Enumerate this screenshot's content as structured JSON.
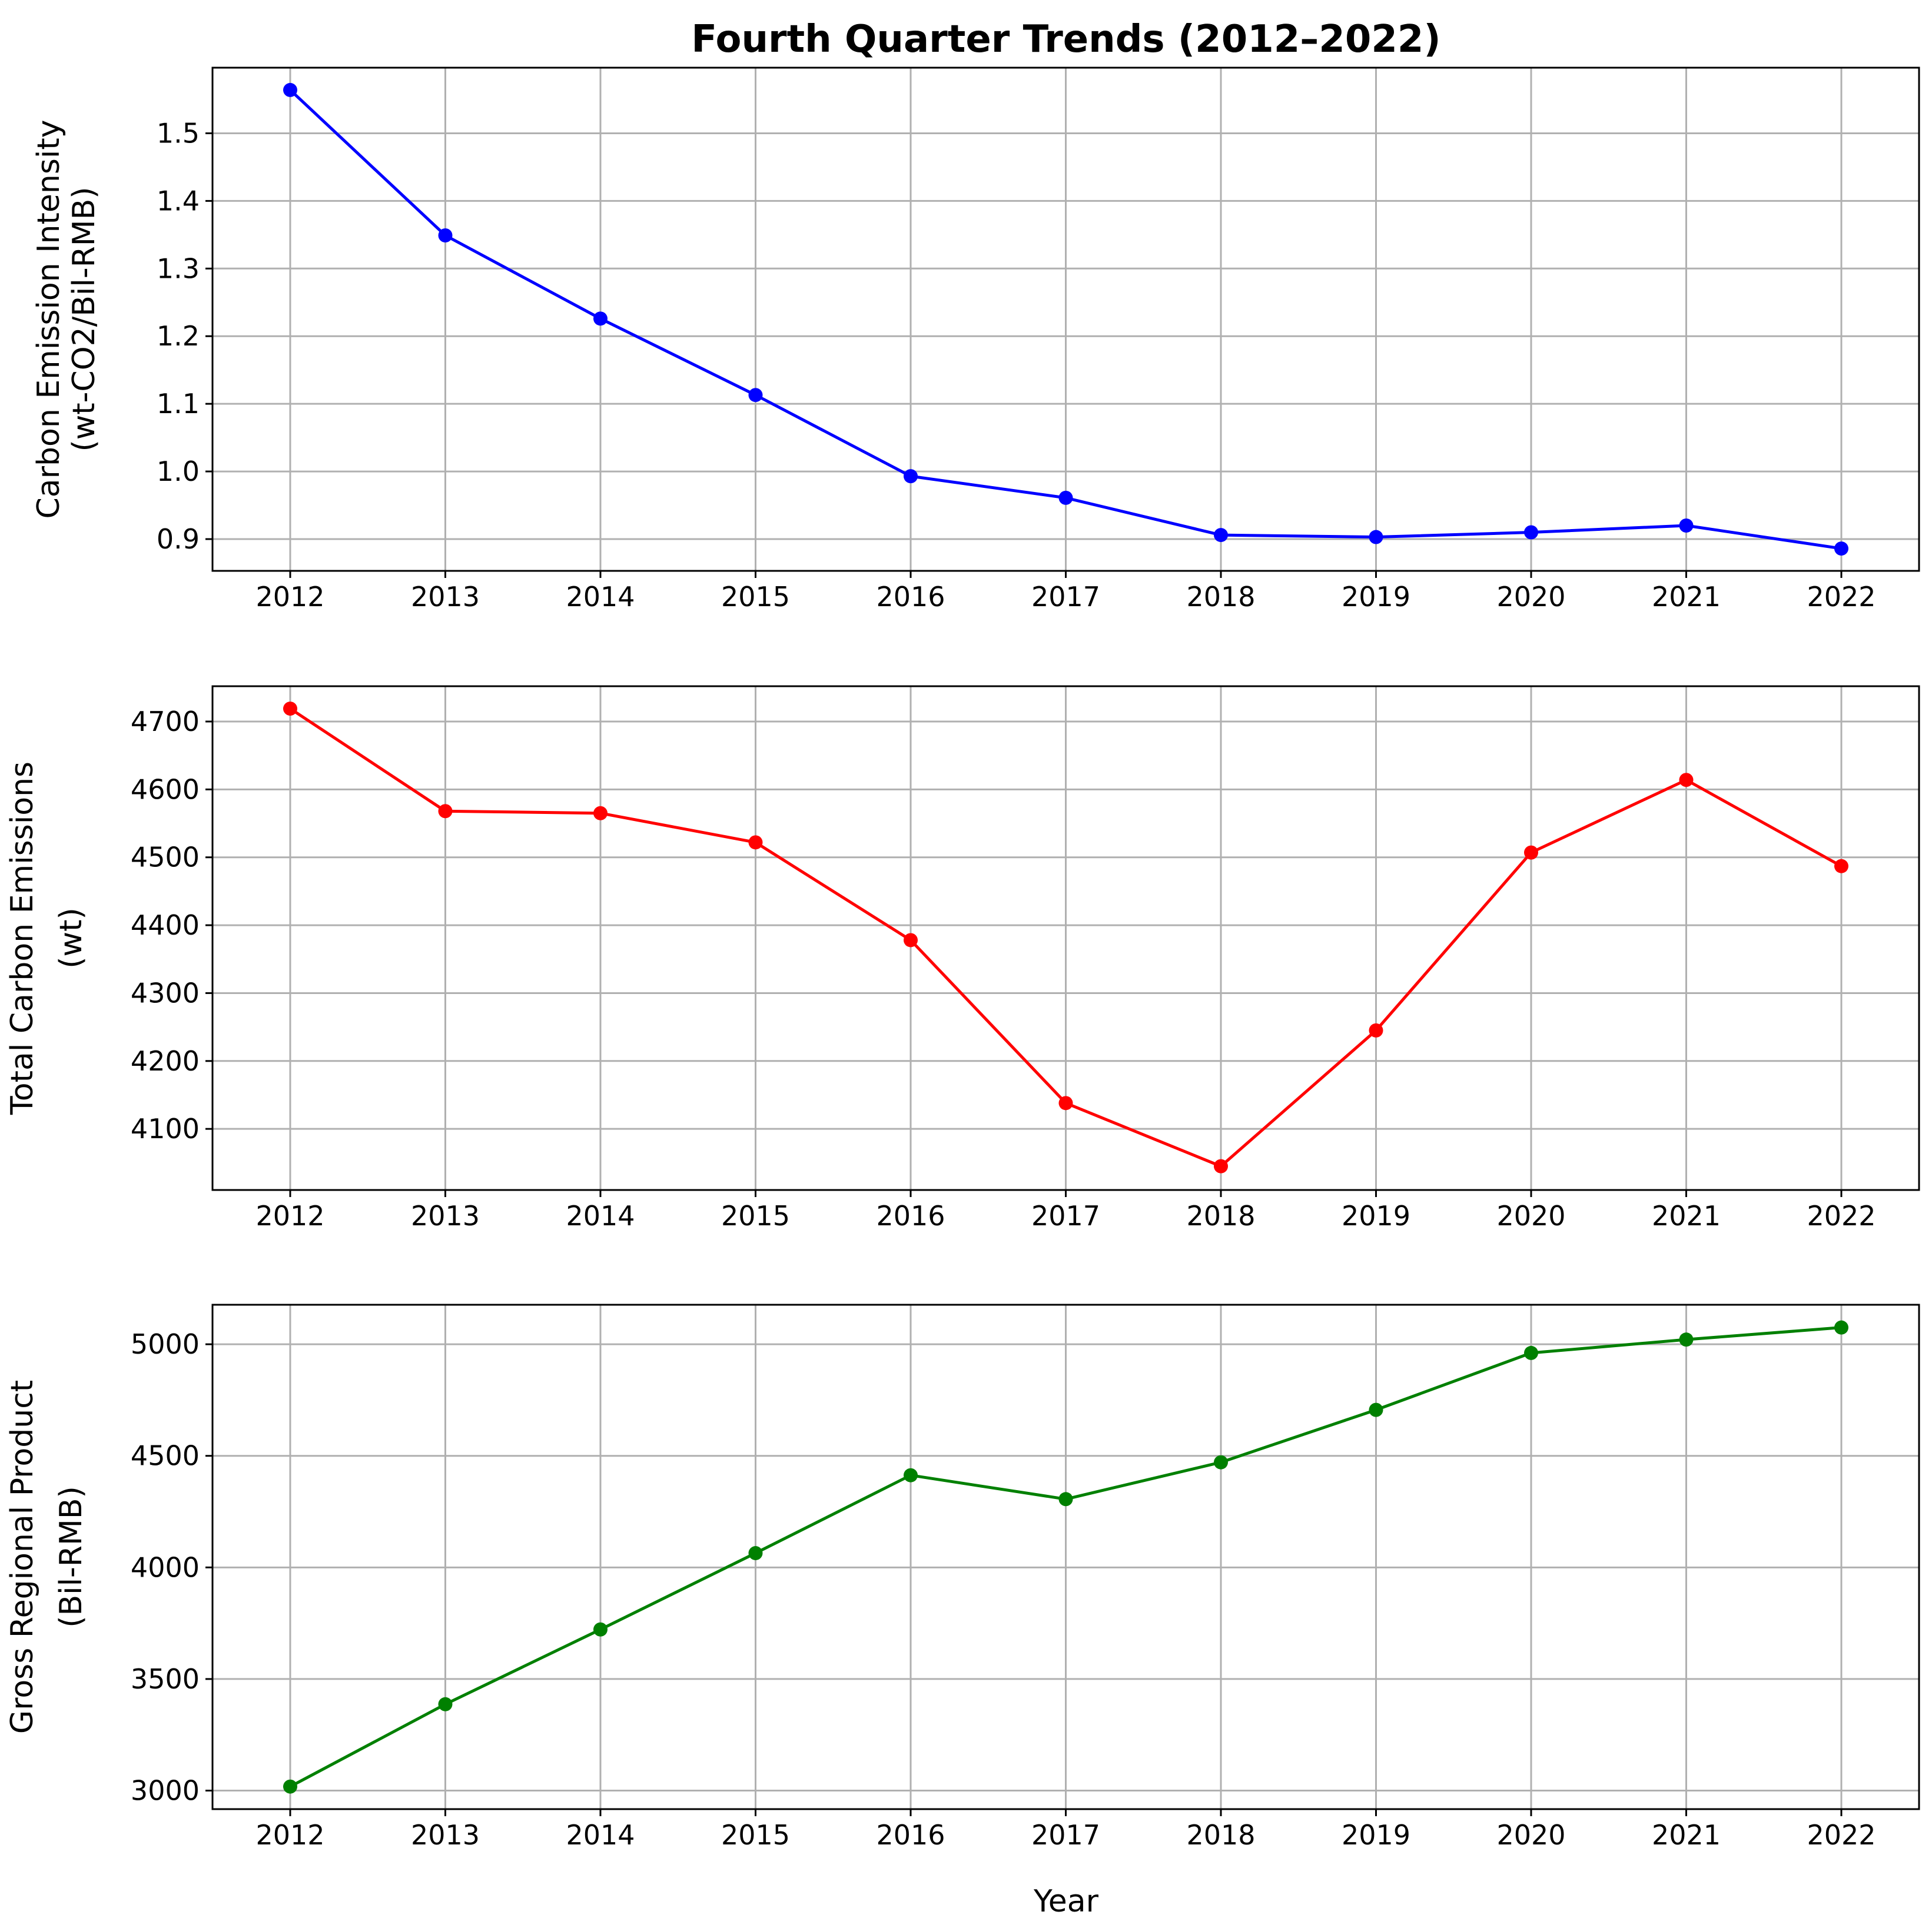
{
  "chart_data": {
    "title": "Fourth Quarter Trends (2012–2022)",
    "xlabel": "Year",
    "type": "line",
    "x": [
      2012,
      2013,
      2014,
      2015,
      2016,
      2017,
      2018,
      2019,
      2020,
      2021,
      2022
    ],
    "panels": [
      {
        "type": "line",
        "ylabel": [
          "Carbon Emission Intensity",
          "(wt-CO2/Bil-RMB)"
        ],
        "color": "#0000ff",
        "ylim": [
          0.853,
          1.597
        ],
        "yticks": [
          0.9,
          1.0,
          1.1,
          1.2,
          1.3,
          1.4,
          1.5
        ],
        "ytick_labels": [
          "0.9",
          "1.0",
          "1.1",
          "1.2",
          "1.3",
          "1.4",
          "1.5"
        ],
        "grid": true,
        "values": [
          1.564,
          1.349,
          1.226,
          1.113,
          0.993,
          0.961,
          0.906,
          0.903,
          0.91,
          0.92,
          0.886
        ]
      },
      {
        "type": "line",
        "ylabel": [
          "Total Carbon Emissions",
          "(wt)"
        ],
        "color": "#ff0000",
        "ylim": [
          4010,
          4752
        ],
        "yticks": [
          4100,
          4200,
          4300,
          4400,
          4500,
          4600,
          4700
        ],
        "ytick_labels": [
          "4100",
          "4200",
          "4300",
          "4400",
          "4500",
          "4600",
          "4700"
        ],
        "grid": true,
        "values": [
          4719,
          4568,
          4565,
          4522,
          4378,
          4138,
          4045,
          4245,
          4507,
          4614,
          4487
        ]
      },
      {
        "type": "line",
        "ylabel": [
          "Gross Regional Product",
          "(Bil-RMB)"
        ],
        "color": "#008000",
        "ylim": [
          2917,
          5177
        ],
        "yticks": [
          3000,
          3500,
          4000,
          4500,
          5000
        ],
        "ytick_labels": [
          "3000",
          "3500",
          "4000",
          "4500",
          "5000"
        ],
        "grid": true,
        "values": [
          3018,
          3387,
          3722,
          4064,
          4413,
          4306,
          4471,
          4706,
          4961,
          5021,
          5075
        ]
      }
    ]
  }
}
